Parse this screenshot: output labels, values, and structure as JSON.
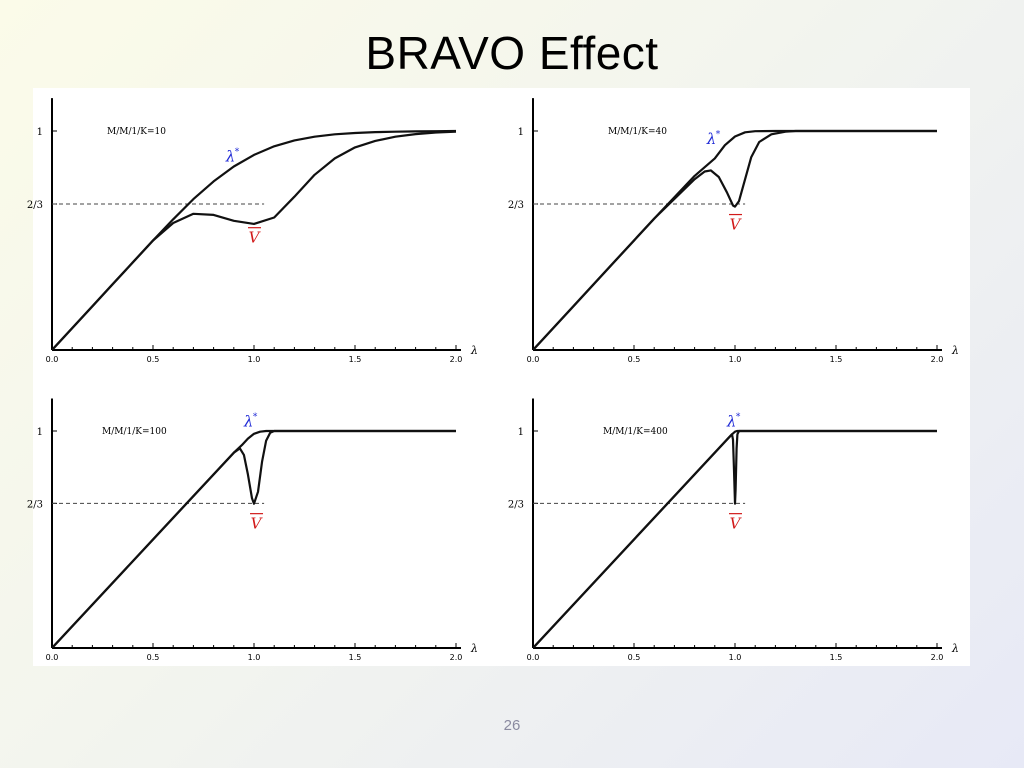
{
  "slide": {
    "title": "BRAVO Effect",
    "page_number": "26"
  },
  "chart_data": [
    {
      "type": "line",
      "panel_label": "M/M/1/K=10",
      "K": 10,
      "xlabel": "λ",
      "x_ticks": [
        "0.0",
        "0.5",
        "1.0",
        "1.5",
        "2.0"
      ],
      "y_ticks": [
        "2/3",
        "1"
      ],
      "xlim": [
        0,
        2
      ],
      "ylim": [
        0,
        1.15
      ],
      "reference_line": {
        "y": 0.6667,
        "x_to": 1.05,
        "style": "dashed"
      },
      "annotations": {
        "lambda_star": "λ",
        "lambda_star_sup": "*",
        "v_bar": "V"
      },
      "series": [
        {
          "key": "lambda_star",
          "x": [
            0,
            0.1,
            0.2,
            0.3,
            0.4,
            0.5,
            0.6,
            0.7,
            0.8,
            0.9,
            1.0,
            1.1,
            1.2,
            1.3,
            1.4,
            1.5,
            1.6,
            1.7,
            1.8,
            1.9,
            2.0
          ],
          "values": [
            0,
            0.1,
            0.2,
            0.3,
            0.4,
            0.5,
            0.597,
            0.689,
            0.77,
            0.838,
            0.891,
            0.93,
            0.957,
            0.974,
            0.985,
            0.991,
            0.995,
            0.997,
            0.998,
            0.999,
            1.0
          ]
        },
        {
          "key": "v_bar",
          "x": [
            0,
            0.1,
            0.2,
            0.3,
            0.4,
            0.5,
            0.6,
            0.7,
            0.8,
            0.9,
            1.0,
            1.1,
            1.2,
            1.3,
            1.4,
            1.5,
            1.6,
            1.7,
            1.8,
            1.9,
            2.0
          ],
          "values": [
            0,
            0.1,
            0.2,
            0.3,
            0.4,
            0.5,
            0.58,
            0.622,
            0.617,
            0.59,
            0.576,
            0.605,
            0.7,
            0.8,
            0.875,
            0.925,
            0.955,
            0.974,
            0.986,
            0.993,
            0.997
          ]
        }
      ]
    },
    {
      "type": "line",
      "panel_label": "M/M/1/K=40",
      "K": 40,
      "xlabel": "λ",
      "x_ticks": [
        "0.0",
        "0.5",
        "1.0",
        "1.5",
        "2.0"
      ],
      "y_ticks": [
        "2/3",
        "1"
      ],
      "xlim": [
        0,
        2
      ],
      "ylim": [
        0,
        1.15
      ],
      "reference_line": {
        "y": 0.6667,
        "x_to": 1.05,
        "style": "dashed"
      },
      "annotations": {
        "lambda_star": "λ",
        "lambda_star_sup": "*",
        "v_bar": "V"
      },
      "series": [
        {
          "key": "lambda_star",
          "x": [
            0,
            0.2,
            0.4,
            0.6,
            0.8,
            0.9,
            0.95,
            1.0,
            1.05,
            1.1,
            1.2,
            1.5,
            2.0
          ],
          "values": [
            0,
            0.2,
            0.4,
            0.6,
            0.795,
            0.875,
            0.935,
            0.975,
            0.994,
            0.999,
            1.0,
            1.0,
            1.0
          ]
        },
        {
          "key": "v_bar",
          "x": [
            0,
            0.2,
            0.4,
            0.6,
            0.8,
            0.85,
            0.88,
            0.92,
            0.96,
            0.99,
            1.0,
            1.02,
            1.05,
            1.08,
            1.12,
            1.18,
            1.25,
            1.3,
            1.5,
            2.0
          ],
          "values": [
            0,
            0.2,
            0.4,
            0.6,
            0.78,
            0.815,
            0.82,
            0.79,
            0.72,
            0.66,
            0.655,
            0.68,
            0.78,
            0.88,
            0.95,
            0.985,
            0.997,
            1.0,
            1.0,
            1.0
          ]
        }
      ]
    },
    {
      "type": "line",
      "panel_label": "M/M/1/K=100",
      "K": 100,
      "xlabel": "λ",
      "x_ticks": [
        "0.0",
        "0.5",
        "1.0",
        "1.5",
        "2.0"
      ],
      "y_ticks": [
        "2/3",
        "1"
      ],
      "xlim": [
        0,
        2
      ],
      "ylim": [
        0,
        1.15
      ],
      "reference_line": {
        "y": 0.6667,
        "x_to": 1.05,
        "style": "dashed"
      },
      "annotations": {
        "lambda_star": "λ",
        "lambda_star_sup": "*",
        "v_bar": "V"
      },
      "series": [
        {
          "key": "lambda_star",
          "x": [
            0,
            0.5,
            0.9,
            0.94,
            0.97,
            1.0,
            1.03,
            1.06,
            1.1,
            1.5,
            2.0
          ],
          "values": [
            0,
            0.5,
            0.9,
            0.935,
            0.965,
            0.987,
            0.997,
            1.0,
            1.0,
            1.0,
            1.0
          ]
        },
        {
          "key": "v_bar",
          "x": [
            0,
            0.5,
            0.9,
            0.93,
            0.95,
            0.97,
            0.99,
            1.0,
            1.02,
            1.04,
            1.06,
            1.08,
            1.1,
            1.5,
            2.0
          ],
          "values": [
            0,
            0.5,
            0.9,
            0.92,
            0.89,
            0.8,
            0.69,
            0.665,
            0.72,
            0.86,
            0.955,
            0.992,
            1.0,
            1.0,
            1.0
          ]
        }
      ]
    },
    {
      "type": "line",
      "panel_label": "M/M/1/K=400",
      "K": 400,
      "xlabel": "λ",
      "x_ticks": [
        "0.0",
        "0.5",
        "1.0",
        "1.5",
        "2.0"
      ],
      "y_ticks": [
        "2/3",
        "1"
      ],
      "xlim": [
        0,
        2
      ],
      "ylim": [
        0,
        1.15
      ],
      "reference_line": {
        "y": 0.6667,
        "x_to": 1.05,
        "style": "dashed"
      },
      "annotations": {
        "lambda_star": "λ",
        "lambda_star_sup": "*",
        "v_bar": "V"
      },
      "series": [
        {
          "key": "lambda_star",
          "x": [
            0,
            0.5,
            0.97,
            0.985,
            1.0,
            1.01,
            1.02,
            1.5,
            2.0
          ],
          "values": [
            0,
            0.5,
            0.97,
            0.985,
            0.997,
            1.0,
            1.0,
            1.0,
            1.0
          ]
        },
        {
          "key": "v_bar",
          "x": [
            0,
            0.5,
            0.98,
            0.985,
            0.99,
            0.995,
            1.0,
            1.003,
            1.008,
            1.012,
            1.02,
            1.5,
            2.0
          ],
          "values": [
            0,
            0.5,
            0.98,
            0.985,
            0.96,
            0.82,
            0.665,
            0.73,
            0.92,
            0.985,
            1.0,
            1.0,
            1.0
          ]
        }
      ]
    }
  ]
}
